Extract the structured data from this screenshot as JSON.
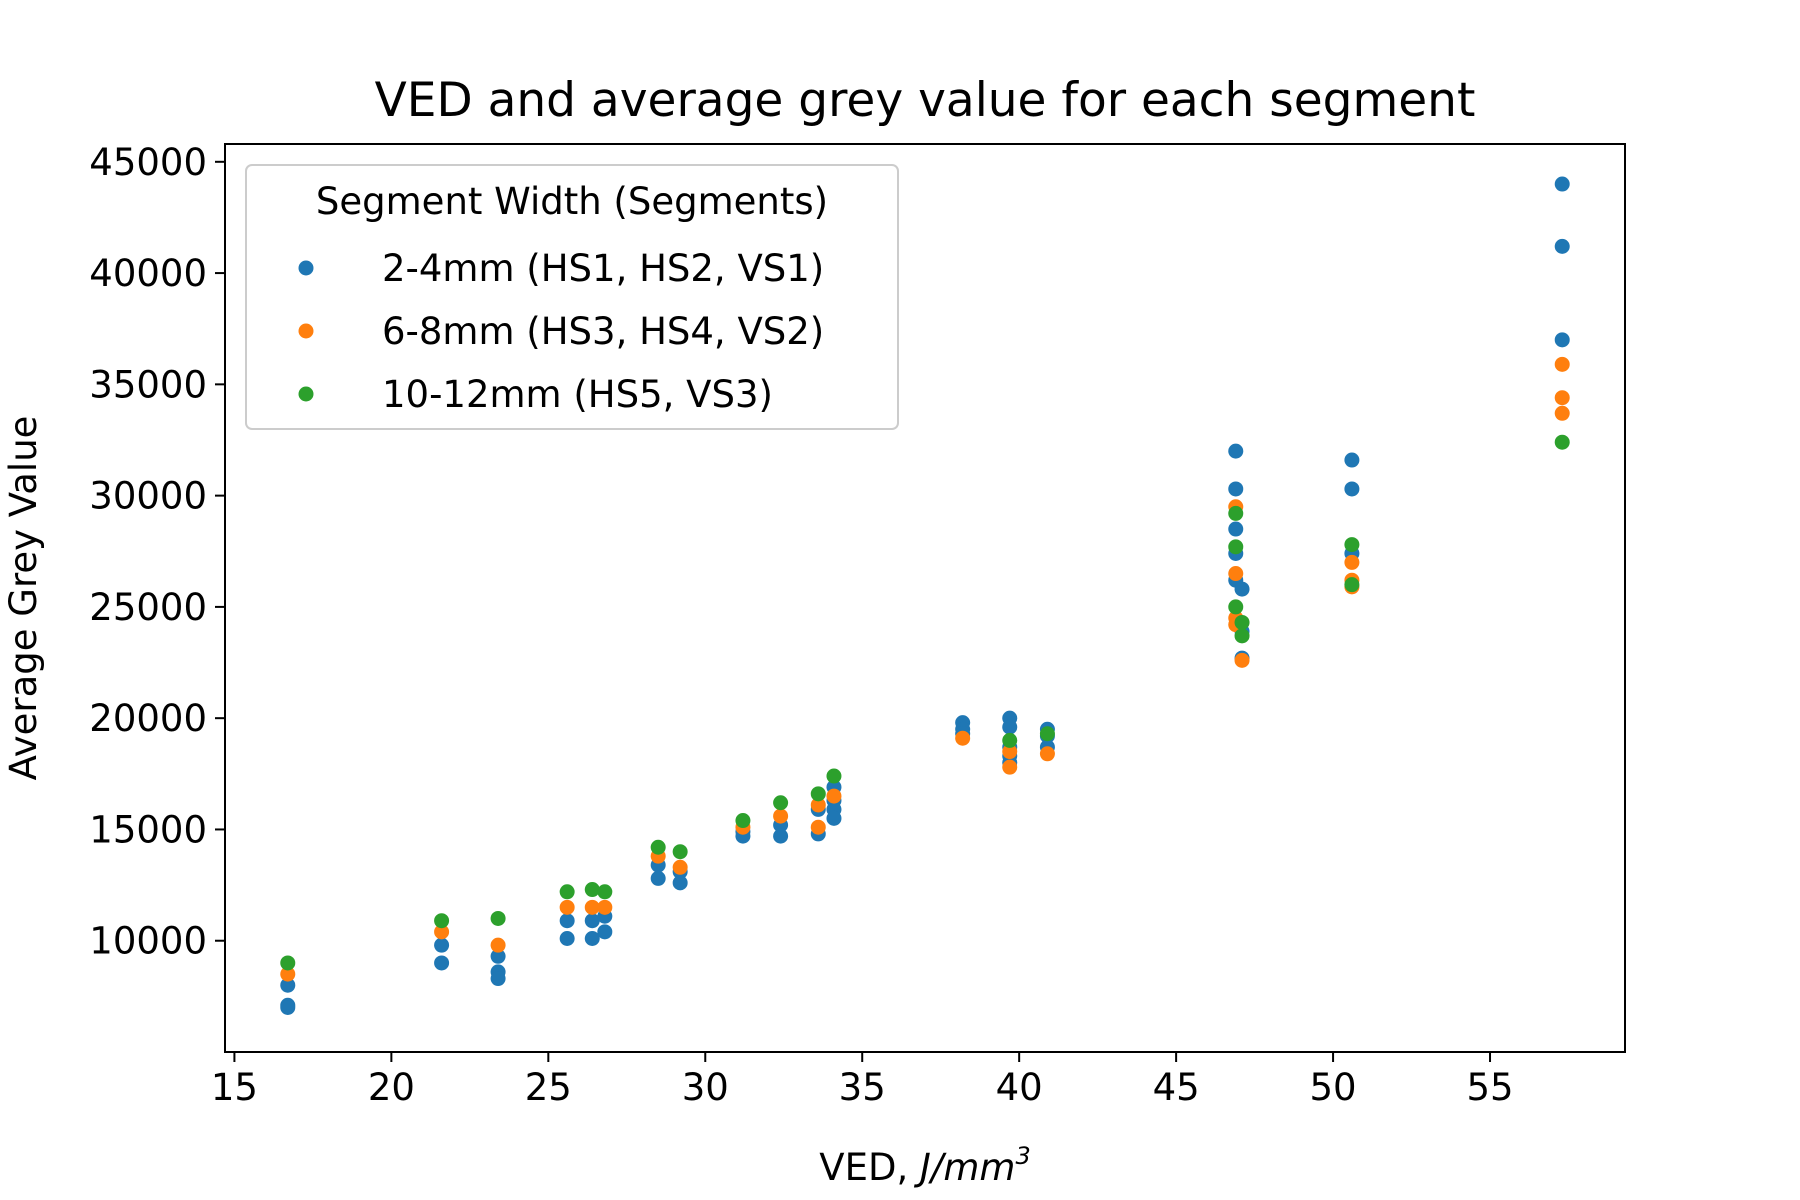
{
  "chart_data": {
    "type": "scatter",
    "title": "VED and average grey value for each segment",
    "xlabel_main": "VED, ",
    "xlabel_unit": "J/mm",
    "xlabel_sup": "3",
    "ylabel": "Average Grey Value",
    "xlim": [
      14.7,
      59.3
    ],
    "ylim": [
      5000,
      45800
    ],
    "xticks": [
      15,
      20,
      25,
      30,
      35,
      40,
      45,
      50,
      55
    ],
    "yticks": [
      10000,
      15000,
      20000,
      25000,
      30000,
      35000,
      40000,
      45000
    ],
    "legend_title": "Segment Width (Segments)",
    "legend_position": "upper-left",
    "series": [
      {
        "name": "2-4mm (HS1, HS2, VS1)",
        "color": "#1f77b4",
        "points": [
          [
            16.7,
            8000
          ],
          [
            16.7,
            7100
          ],
          [
            16.7,
            7000
          ],
          [
            21.6,
            9800
          ],
          [
            21.6,
            9000
          ],
          [
            23.4,
            9300
          ],
          [
            23.4,
            8600
          ],
          [
            23.4,
            8300
          ],
          [
            25.6,
            10900
          ],
          [
            25.6,
            10100
          ],
          [
            26.4,
            10900
          ],
          [
            26.4,
            10100
          ],
          [
            26.8,
            11100
          ],
          [
            26.8,
            10400
          ],
          [
            28.5,
            13400
          ],
          [
            28.5,
            12800
          ],
          [
            29.2,
            13100
          ],
          [
            29.2,
            12600
          ],
          [
            31.2,
            14900
          ],
          [
            31.2,
            14700
          ],
          [
            32.4,
            15200
          ],
          [
            32.4,
            14700
          ],
          [
            33.6,
            15900
          ],
          [
            33.6,
            14800
          ],
          [
            34.1,
            16900
          ],
          [
            34.1,
            16300
          ],
          [
            34.1,
            15900
          ],
          [
            34.1,
            15500
          ],
          [
            38.2,
            19800
          ],
          [
            38.2,
            19500
          ],
          [
            38.2,
            19300
          ],
          [
            39.7,
            20000
          ],
          [
            39.7,
            19600
          ],
          [
            39.7,
            18700
          ],
          [
            39.7,
            18300
          ],
          [
            39.7,
            18000
          ],
          [
            40.9,
            19500
          ],
          [
            40.9,
            19200
          ],
          [
            40.9,
            18700
          ],
          [
            46.9,
            32000
          ],
          [
            46.9,
            30300
          ],
          [
            46.9,
            28500
          ],
          [
            46.9,
            27400
          ],
          [
            46.9,
            26200
          ],
          [
            47.1,
            25800
          ],
          [
            47.1,
            23900
          ],
          [
            47.1,
            22700
          ],
          [
            50.6,
            31600
          ],
          [
            50.6,
            30300
          ],
          [
            50.6,
            27400
          ],
          [
            57.3,
            44000
          ],
          [
            57.3,
            41200
          ],
          [
            57.3,
            37000
          ]
        ]
      },
      {
        "name": "6-8mm (HS3, HS4, VS2)",
        "color": "#ff7f0e",
        "points": [
          [
            16.7,
            8500
          ],
          [
            21.6,
            10400
          ],
          [
            23.4,
            9800
          ],
          [
            25.6,
            11500
          ],
          [
            26.4,
            11500
          ],
          [
            26.8,
            11500
          ],
          [
            28.5,
            13800
          ],
          [
            29.2,
            13300
          ],
          [
            31.2,
            15100
          ],
          [
            32.4,
            15600
          ],
          [
            33.6,
            16100
          ],
          [
            33.6,
            15100
          ],
          [
            34.1,
            16500
          ],
          [
            38.2,
            19100
          ],
          [
            39.7,
            17800
          ],
          [
            39.7,
            18500
          ],
          [
            40.9,
            18400
          ],
          [
            46.9,
            29500
          ],
          [
            46.9,
            26500
          ],
          [
            46.9,
            24500
          ],
          [
            46.9,
            24200
          ],
          [
            47.1,
            22600
          ],
          [
            50.6,
            27000
          ],
          [
            50.6,
            26200
          ],
          [
            50.6,
            25900
          ],
          [
            57.3,
            35900
          ],
          [
            57.3,
            34400
          ],
          [
            57.3,
            33700
          ]
        ]
      },
      {
        "name": "10-12mm (HS5, VS3)",
        "color": "#2ca02c",
        "points": [
          [
            16.7,
            9000
          ],
          [
            21.6,
            10900
          ],
          [
            23.4,
            11000
          ],
          [
            25.6,
            12200
          ],
          [
            26.4,
            12300
          ],
          [
            26.8,
            12200
          ],
          [
            28.5,
            14200
          ],
          [
            29.2,
            14000
          ],
          [
            31.2,
            15400
          ],
          [
            32.4,
            16200
          ],
          [
            33.6,
            16600
          ],
          [
            34.1,
            17400
          ],
          [
            39.7,
            19000
          ],
          [
            40.9,
            19300
          ],
          [
            46.9,
            29200
          ],
          [
            46.9,
            27700
          ],
          [
            46.9,
            25000
          ],
          [
            47.1,
            24300
          ],
          [
            47.1,
            23700
          ],
          [
            50.6,
            27800
          ],
          [
            50.6,
            26000
          ],
          [
            57.3,
            32400
          ]
        ]
      }
    ]
  }
}
